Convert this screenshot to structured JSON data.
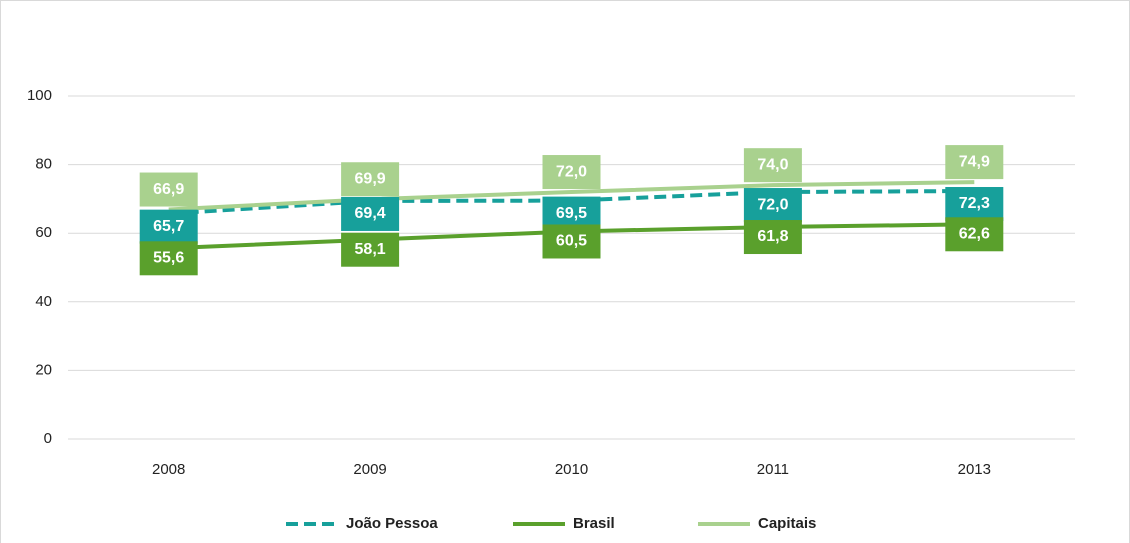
{
  "chart_data": {
    "type": "line",
    "categories": [
      "2008",
      "2009",
      "2010",
      "2011",
      "2013"
    ],
    "series": [
      {
        "name": "João Pessoa",
        "color": "#17a09b",
        "dashed": true,
        "values": [
          65.7,
          69.4,
          69.5,
          72.0,
          72.3
        ],
        "value_labels": [
          "65,7",
          "69,4",
          "69,5",
          "72,0",
          "72,3"
        ]
      },
      {
        "name": "Brasil",
        "color": "#5aa02c",
        "values": [
          55.6,
          58.1,
          60.5,
          61.8,
          62.6
        ],
        "value_labels": [
          "55,6",
          "58,1",
          "60,5",
          "61,8",
          "62,6"
        ]
      },
      {
        "name": "Capitais",
        "color": "#a9d18e",
        "values": [
          66.9,
          69.9,
          72.0,
          74.0,
          74.9
        ],
        "value_labels": [
          "66,9",
          "69,9",
          "72,0",
          "74,0",
          "74,9"
        ]
      }
    ],
    "ylim": [
      0,
      100
    ],
    "yticks": [
      0,
      20,
      40,
      60,
      80,
      100
    ],
    "grid": true,
    "legend": "bottom"
  }
}
